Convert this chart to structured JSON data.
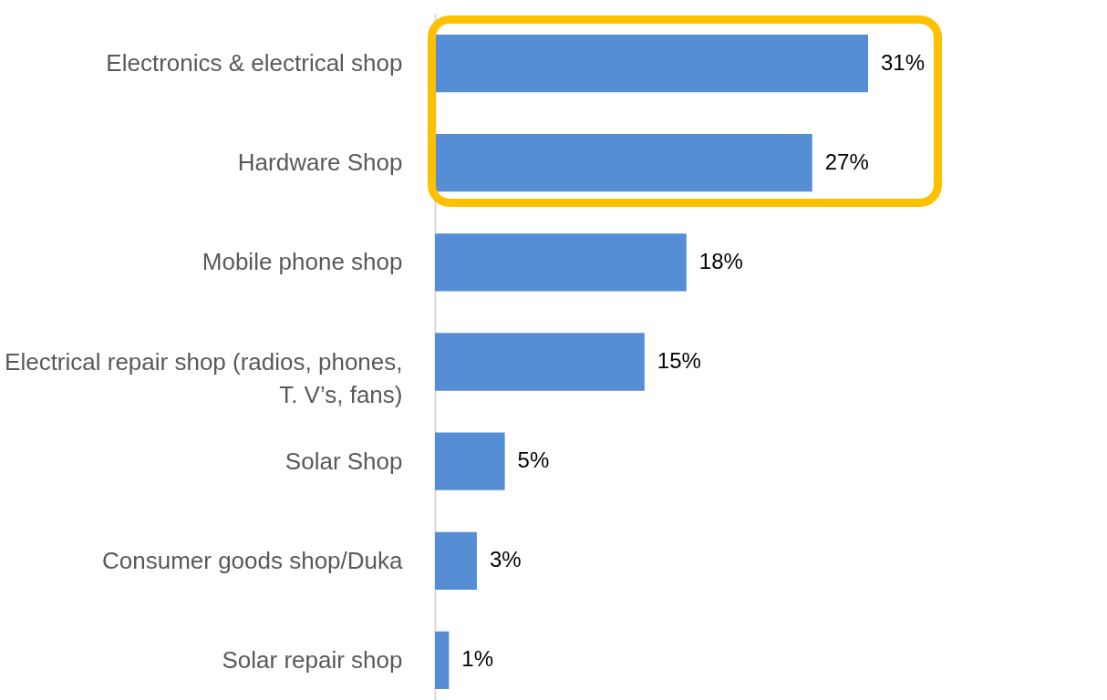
{
  "chart_data": {
    "type": "bar",
    "orientation": "horizontal",
    "categories": [
      "Electronics & electrical shop",
      "Hardware Shop",
      "Mobile phone shop",
      "Electrical repair shop (radios, phones, T. V’s, fans)",
      "Solar  Shop",
      "Consumer goods shop/Duka",
      "Solar repair shop"
    ],
    "values": [
      31,
      27,
      18,
      15,
      5,
      3,
      1
    ],
    "value_labels": [
      "31%",
      "27%",
      "18%",
      "15%",
      "5%",
      "3%",
      "1%"
    ],
    "color": "#558ed5"
  }
}
